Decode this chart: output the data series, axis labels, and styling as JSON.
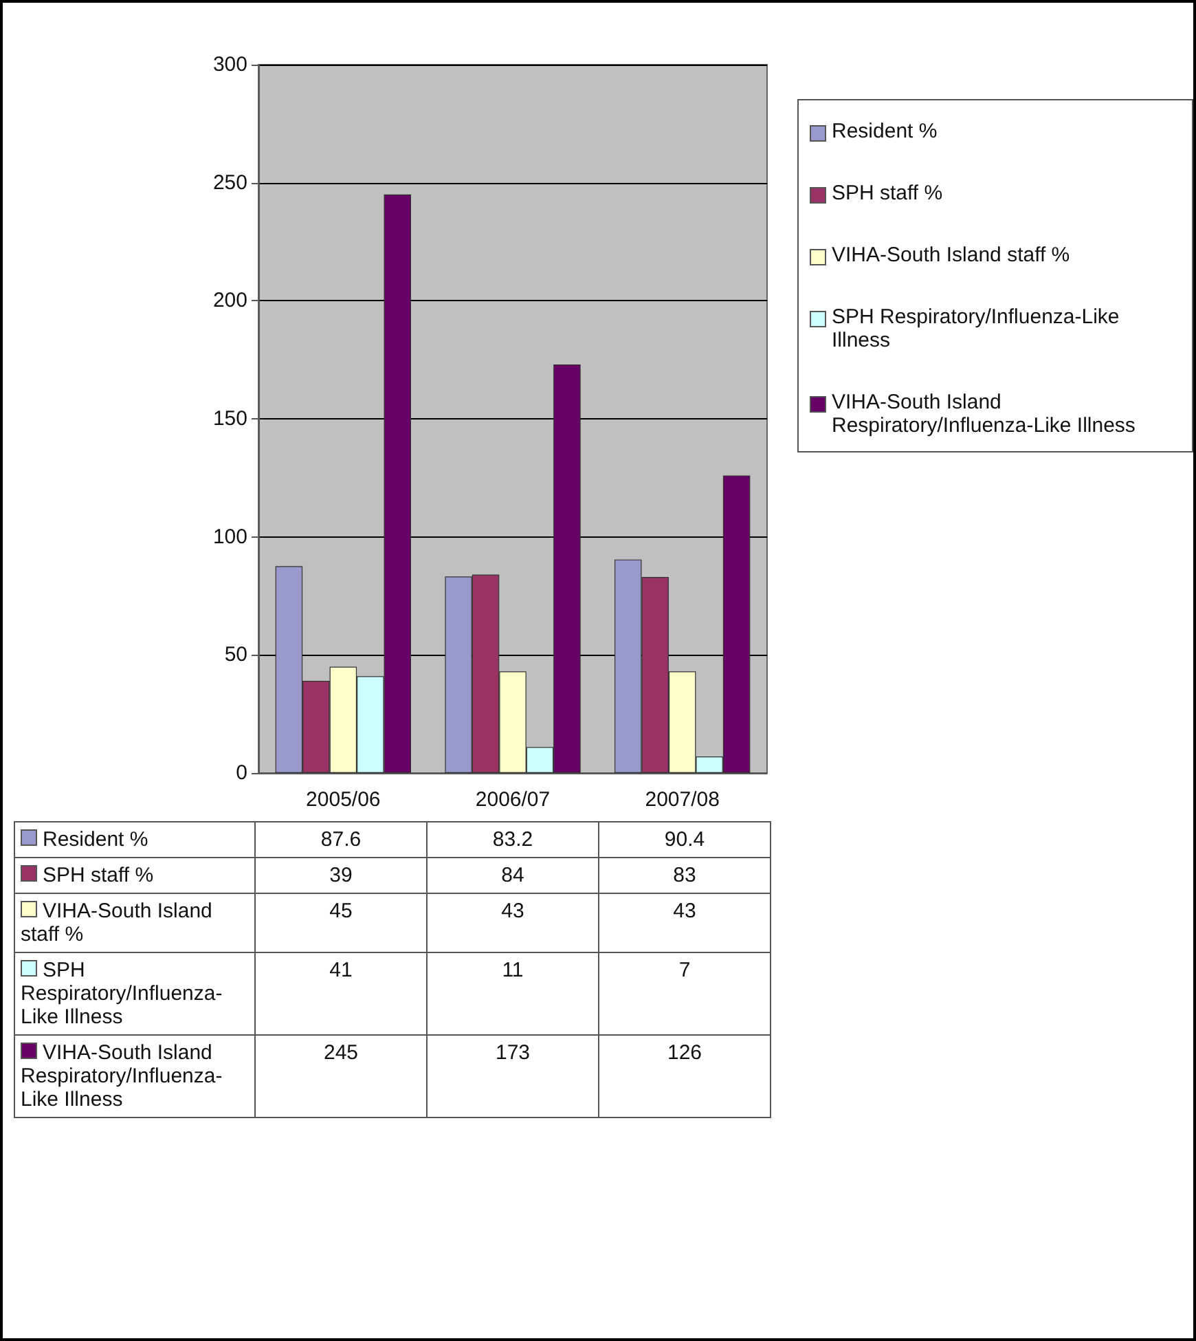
{
  "chart_data": {
    "type": "bar",
    "categories": [
      "2005/06",
      "2006/07",
      "2007/08"
    ],
    "series": [
      {
        "name": "Resident %",
        "color": "#9999cc",
        "values": [
          87.6,
          83.2,
          90.4
        ]
      },
      {
        "name": "SPH staff %",
        "color": "#993366",
        "values": [
          39,
          84,
          83
        ]
      },
      {
        "name": "VIHA-South Island staff %",
        "color": "#ffffcc",
        "values": [
          45,
          43,
          43
        ]
      },
      {
        "name": "SPH Respiratory/Influenza-Like Illness",
        "color": "#ccffff",
        "values": [
          41,
          11,
          7
        ]
      },
      {
        "name": "VIHA-South Island Respiratory/Influenza-Like Illness",
        "color": "#660066",
        "values": [
          245,
          173,
          126
        ]
      }
    ],
    "ylim": [
      0,
      300
    ],
    "yticks": [
      0,
      50,
      100,
      150,
      200,
      250,
      300
    ],
    "grid": "y",
    "legend": "right",
    "data_labels": true
  }
}
